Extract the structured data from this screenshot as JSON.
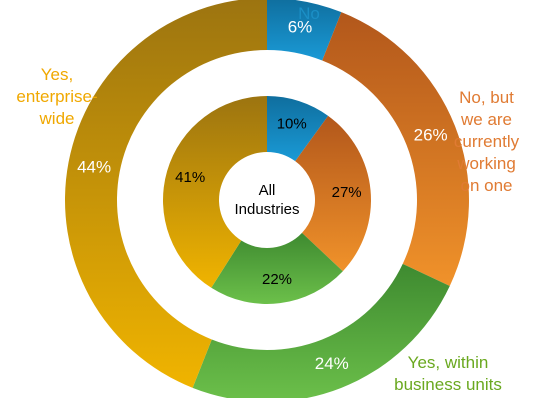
{
  "chart_data": {
    "type": "pie",
    "variant": "nested-donut",
    "center_label": "All\nIndustries",
    "categories": [
      "No",
      "No, but we are currently working on one",
      "Yes, within business units",
      "Yes, enterprise-wide"
    ],
    "category_labels_shown": [
      "No",
      "No, but\nwe are\ncurrently\nworking\non one",
      "Yes, within\nbusiness units",
      "Yes,\nenterprise-\nwide"
    ],
    "colors": {
      "No": [
        "#1a9ad6",
        "#0f6e9e"
      ],
      "No, but we are currently working on one": [
        "#f0922a",
        "#b2571b"
      ],
      "Yes, within business units": [
        "#6cc04a",
        "#3e8a30"
      ],
      "Yes, enterprise-wide": [
        "#f0b400",
        "#9c7410"
      ]
    },
    "label_colors": {
      "No": "#1b8fc6",
      "No, but we are currently working on one": "#e07b33",
      "Yes, within business units": "#6aa81f",
      "Yes, enterprise-wide": "#f0a800"
    },
    "series": [
      {
        "ring": "outer",
        "values": [
          6,
          26,
          24,
          44
        ],
        "value_labels": [
          "6%",
          "26%",
          "24%",
          "44%"
        ]
      },
      {
        "ring": "inner",
        "values": [
          10,
          27,
          22,
          41
        ],
        "value_labels": [
          "10%",
          "27%",
          "22%",
          "41%"
        ]
      }
    ]
  }
}
